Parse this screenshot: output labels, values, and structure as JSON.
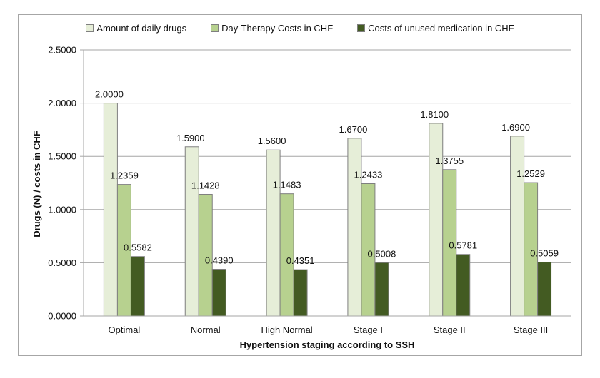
{
  "chart_data": {
    "type": "bar",
    "title": "",
    "xlabel": "Hypertension staging according to SSH",
    "ylabel": "Drugs (N) / costs in CHF",
    "ylim": [
      0,
      2.5
    ],
    "yticks": [
      0,
      0.5,
      1.0,
      1.5,
      2.0,
      2.5
    ],
    "ytick_labels": [
      "0.0000",
      "0.5000",
      "1.0000",
      "1.5000",
      "2.0000",
      "2.5000"
    ],
    "grid": true,
    "legend_position": "top-center",
    "categories": [
      "Optimal",
      "Normal",
      "High Normal",
      "Stage I",
      "Stage II",
      "Stage III"
    ],
    "series": [
      {
        "name": "Amount of daily drugs",
        "color": "#e6eed8",
        "values": [
          2.0,
          1.59,
          1.56,
          1.67,
          1.81,
          1.69
        ],
        "labels": [
          "2.0000",
          "1.5900",
          "1.5600",
          "1.6700",
          "1.8100",
          "1.6900"
        ]
      },
      {
        "name": "Day-Therapy Costs in CHF",
        "color": "#b7d18f",
        "values": [
          1.2359,
          1.1428,
          1.1483,
          1.2433,
          1.3755,
          1.2529
        ],
        "labels": [
          "1.2359",
          "1.1428",
          "1.1483",
          "1.2433",
          "1.3755",
          "1.2529"
        ]
      },
      {
        "name": "Costs of unused medication in CHF",
        "color": "#435b22",
        "values": [
          0.5582,
          0.439,
          0.4351,
          0.5008,
          0.5781,
          0.5059
        ],
        "labels": [
          "0.5582",
          "0.4390",
          "0.4351",
          "0.5008",
          "0.5781",
          "0.5059"
        ]
      }
    ]
  }
}
